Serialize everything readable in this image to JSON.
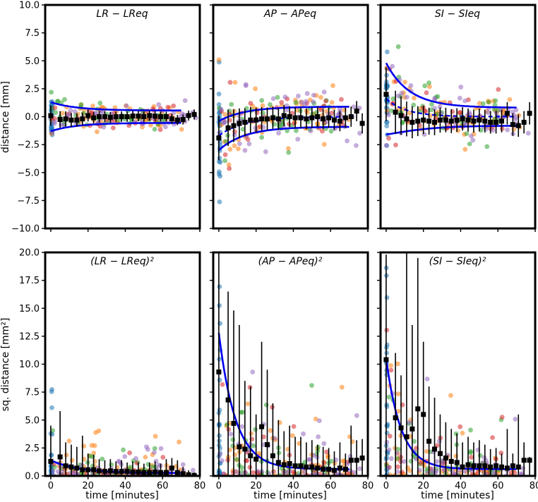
{
  "chart_data": {
    "type": "scatter",
    "layout": "2x3 grid, shared x-axis per column, shared y-axis per row",
    "xlabel": "time [minutes]",
    "xlim": [
      -3,
      80
    ],
    "xticks": [
      0,
      20,
      40,
      60,
      80
    ],
    "rows": [
      {
        "ylabel": "distance [mm]",
        "ylim": [
          -10,
          10
        ],
        "yticks": [
          -10.0,
          -7.5,
          -5.0,
          -2.5,
          0.0,
          2.5,
          5.0,
          7.5,
          10.0
        ],
        "ytick_labels": [
          "−10.0",
          "−7.5",
          "−5.0",
          "−2.5",
          "0.0",
          "2.5",
          "5.0",
          "7.5",
          "10.0"
        ]
      },
      {
        "ylabel": "sq. distance [mm²]",
        "ylim": [
          0,
          20
        ],
        "yticks": [
          0.0,
          2.5,
          5.0,
          7.5,
          10.0,
          12.5,
          15.0,
          17.5,
          20.0
        ],
        "ytick_labels": [
          "0.0",
          "2.5",
          "5.0",
          "7.5",
          "10.0",
          "12.5",
          "15.0",
          "17.5",
          "20.0"
        ]
      }
    ],
    "scatter_colors": [
      "#1f77b4",
      "#ff7f0e",
      "#2ca02c",
      "#d62728",
      "#9467bd"
    ],
    "point_alpha": 0.55,
    "fit_color": "#0000ee",
    "mean_marker_color": "#000000",
    "panels": [
      {
        "row": 0,
        "col": 0,
        "title": "LR − LReq",
        "sd": [
          1.3,
          0.55
        ],
        "mean_at_zero": 0.1,
        "mean_final": 0.0,
        "tau": 12,
        "fit_mean": false,
        "spread": [
          1.0,
          0.5
        ],
        "err_half": [
          0.9,
          0.45
        ],
        "means": [
          [
            0,
            0.1
          ],
          [
            5,
            -0.25
          ],
          [
            8,
            -0.2
          ],
          [
            11,
            -0.3
          ],
          [
            14,
            -0.3
          ],
          [
            17,
            -0.2
          ],
          [
            20,
            0.1
          ],
          [
            23,
            -0.1
          ],
          [
            26,
            0.0
          ],
          [
            29,
            0.0
          ],
          [
            32,
            -0.05
          ],
          [
            35,
            0.0
          ],
          [
            38,
            0.0
          ],
          [
            41,
            0.0
          ],
          [
            44,
            0.05
          ],
          [
            47,
            0.05
          ],
          [
            50,
            0.0
          ],
          [
            53,
            0.1
          ],
          [
            56,
            0.05
          ],
          [
            59,
            0.0
          ],
          [
            62,
            0.0
          ],
          [
            65,
            -0.2
          ],
          [
            68,
            -0.3
          ],
          [
            71,
            -0.25
          ],
          [
            74,
            0.1
          ],
          [
            77,
            0.2
          ]
        ]
      },
      {
        "row": 0,
        "col": 1,
        "title": "AP − APeq",
        "sd": [
          1.3,
          0.9
        ],
        "mean_at_zero": -1.7,
        "mean_final": 0.0,
        "tau": 14,
        "fit_mean": true,
        "spread": [
          2.5,
          1.0
        ],
        "err_half": [
          2.0,
          0.9
        ],
        "means": [
          [
            0,
            -1.9
          ],
          [
            5,
            -1.0
          ],
          [
            8,
            -0.8
          ],
          [
            11,
            -0.6
          ],
          [
            14,
            -0.5
          ],
          [
            17,
            -0.3
          ],
          [
            20,
            -0.3
          ],
          [
            23,
            -0.2
          ],
          [
            26,
            -0.2
          ],
          [
            29,
            -0.1
          ],
          [
            32,
            -0.2
          ],
          [
            35,
            0.1
          ],
          [
            38,
            0.0
          ],
          [
            41,
            -0.1
          ],
          [
            44,
            -0.1
          ],
          [
            47,
            -0.2
          ],
          [
            50,
            -0.1
          ],
          [
            53,
            0.0
          ],
          [
            56,
            -0.2
          ],
          [
            59,
            -0.1
          ],
          [
            62,
            -0.3
          ],
          [
            65,
            -0.4
          ],
          [
            68,
            -0.1
          ],
          [
            71,
            0.0
          ],
          [
            74,
            0.5
          ],
          [
            77,
            -0.6
          ]
        ]
      },
      {
        "row": 0,
        "col": 2,
        "title": "SI − SIeq",
        "sd": [
          3.2,
          0.8
        ],
        "mean_at_zero": 1.6,
        "mean_final": 0.0,
        "tau": 11,
        "fit_mean": true,
        "spread": [
          2.3,
          1.0
        ],
        "err_half": [
          2.4,
          1.0
        ],
        "means": [
          [
            0,
            2.0
          ],
          [
            5,
            0.4
          ],
          [
            8,
            0.1
          ],
          [
            11,
            -0.2
          ],
          [
            14,
            -0.5
          ],
          [
            17,
            -0.4
          ],
          [
            20,
            -0.3
          ],
          [
            23,
            -0.4
          ],
          [
            26,
            -0.5
          ],
          [
            29,
            -0.3
          ],
          [
            32,
            -0.3
          ],
          [
            35,
            -0.4
          ],
          [
            38,
            -0.3
          ],
          [
            41,
            -0.2
          ],
          [
            44,
            -0.3
          ],
          [
            47,
            -0.4
          ],
          [
            50,
            -0.3
          ],
          [
            53,
            -0.4
          ],
          [
            56,
            -0.5
          ],
          [
            59,
            -0.5
          ],
          [
            62,
            -0.4
          ],
          [
            65,
            0.3
          ],
          [
            68,
            -0.7
          ],
          [
            71,
            -0.8
          ],
          [
            74,
            -0.5
          ],
          [
            77,
            0.3
          ]
        ]
      },
      {
        "row": 1,
        "col": 0,
        "title": "(LR − LReq)²",
        "fit_start": 1.4,
        "fit_end": 0.25,
        "tau": 15,
        "spread_scale": [
          2.0,
          0.9
        ],
        "means": [
          [
            0,
            1.3
          ],
          [
            5,
            1.7
          ],
          [
            8,
            0.9
          ],
          [
            11,
            0.8
          ],
          [
            14,
            0.7
          ],
          [
            17,
            0.55
          ],
          [
            20,
            0.55
          ],
          [
            23,
            0.55
          ],
          [
            26,
            0.45
          ],
          [
            29,
            0.4
          ],
          [
            32,
            0.45
          ],
          [
            35,
            0.4
          ],
          [
            38,
            0.4
          ],
          [
            41,
            0.4
          ],
          [
            44,
            0.35
          ],
          [
            47,
            0.35
          ],
          [
            50,
            0.3
          ],
          [
            53,
            0.3
          ],
          [
            56,
            0.35
          ],
          [
            59,
            0.3
          ],
          [
            62,
            0.3
          ],
          [
            65,
            0.7
          ],
          [
            68,
            0.3
          ],
          [
            71,
            0.2
          ],
          [
            74,
            0.1
          ],
          [
            77,
            0.05
          ]
        ],
        "err_top": [
          4.5,
          5.8,
          3.0,
          2.8,
          2.6,
          3.6,
          2.0,
          1.9,
          1.5,
          1.4,
          1.5,
          1.3,
          1.4,
          1.2,
          1.3,
          1.2,
          1.1,
          1.2,
          1.3,
          1.1,
          1.5,
          1.6,
          1.4,
          0.8,
          0.5,
          0.3
        ]
      },
      {
        "row": 1,
        "col": 1,
        "title": "(AP − APeq)²",
        "fit_start": 12.8,
        "fit_end": 0.6,
        "tau": 9,
        "spread_scale": [
          7.0,
          1.8
        ],
        "means": [
          [
            0,
            9.3
          ],
          [
            5,
            6.8
          ],
          [
            8,
            4.7
          ],
          [
            11,
            2.6
          ],
          [
            14,
            2.4
          ],
          [
            17,
            1.8
          ],
          [
            20,
            1.5
          ],
          [
            23,
            4.4
          ],
          [
            26,
            2.8
          ],
          [
            29,
            1.8
          ],
          [
            32,
            1.2
          ],
          [
            35,
            1.0
          ],
          [
            38,
            1.1
          ],
          [
            41,
            0.9
          ],
          [
            44,
            0.9
          ],
          [
            47,
            0.8
          ],
          [
            50,
            0.8
          ],
          [
            53,
            0.7
          ],
          [
            56,
            0.6
          ],
          [
            59,
            0.6
          ],
          [
            62,
            0.5
          ],
          [
            65,
            0.7
          ],
          [
            68,
            0.6
          ],
          [
            71,
            1.4
          ],
          [
            74,
            1.4
          ],
          [
            77,
            1.6
          ]
        ],
        "err_top": [
          20.0,
          16.5,
          14.8,
          13.5,
          8.5,
          8.0,
          5.5,
          12.0,
          9.5,
          6.5,
          5.0,
          4.0,
          4.5,
          3.5,
          3.5,
          3.0,
          3.2,
          2.8,
          2.6,
          2.5,
          2.2,
          3.0,
          2.0,
          4.5,
          3.2,
          3.3
        ]
      },
      {
        "row": 1,
        "col": 2,
        "title": "(SI − SIeq)²",
        "fit_start": 10.5,
        "fit_end": 0.6,
        "tau": 8,
        "spread_scale": [
          6.5,
          1.8
        ],
        "means": [
          [
            0,
            10.4
          ],
          [
            5,
            5.2
          ],
          [
            8,
            4.3
          ],
          [
            11,
            3.5
          ],
          [
            14,
            4.2
          ],
          [
            17,
            6.0
          ],
          [
            20,
            5.5
          ],
          [
            23,
            3.1
          ],
          [
            26,
            2.4
          ],
          [
            29,
            2.0
          ],
          [
            32,
            1.6
          ],
          [
            35,
            1.3
          ],
          [
            38,
            1.2
          ],
          [
            41,
            0.8
          ],
          [
            44,
            1.0
          ],
          [
            47,
            0.9
          ],
          [
            50,
            0.9
          ],
          [
            53,
            0.9
          ],
          [
            56,
            0.8
          ],
          [
            59,
            0.9
          ],
          [
            62,
            0.8
          ],
          [
            65,
            0.7
          ],
          [
            68,
            0.9
          ],
          [
            71,
            0.8
          ],
          [
            74,
            1.4
          ],
          [
            77,
            1.4
          ]
        ],
        "err_top": [
          19.8,
          11.0,
          9.0,
          20.0,
          13.5,
          19.5,
          12.0,
          8.0,
          7.0,
          5.5,
          4.8,
          4.2,
          3.8,
          3.0,
          3.5,
          3.0,
          3.2,
          2.8,
          2.4,
          2.5,
          2.0,
          4.2,
          2.0,
          5.5,
          3.0,
          1.7
        ]
      }
    ]
  }
}
